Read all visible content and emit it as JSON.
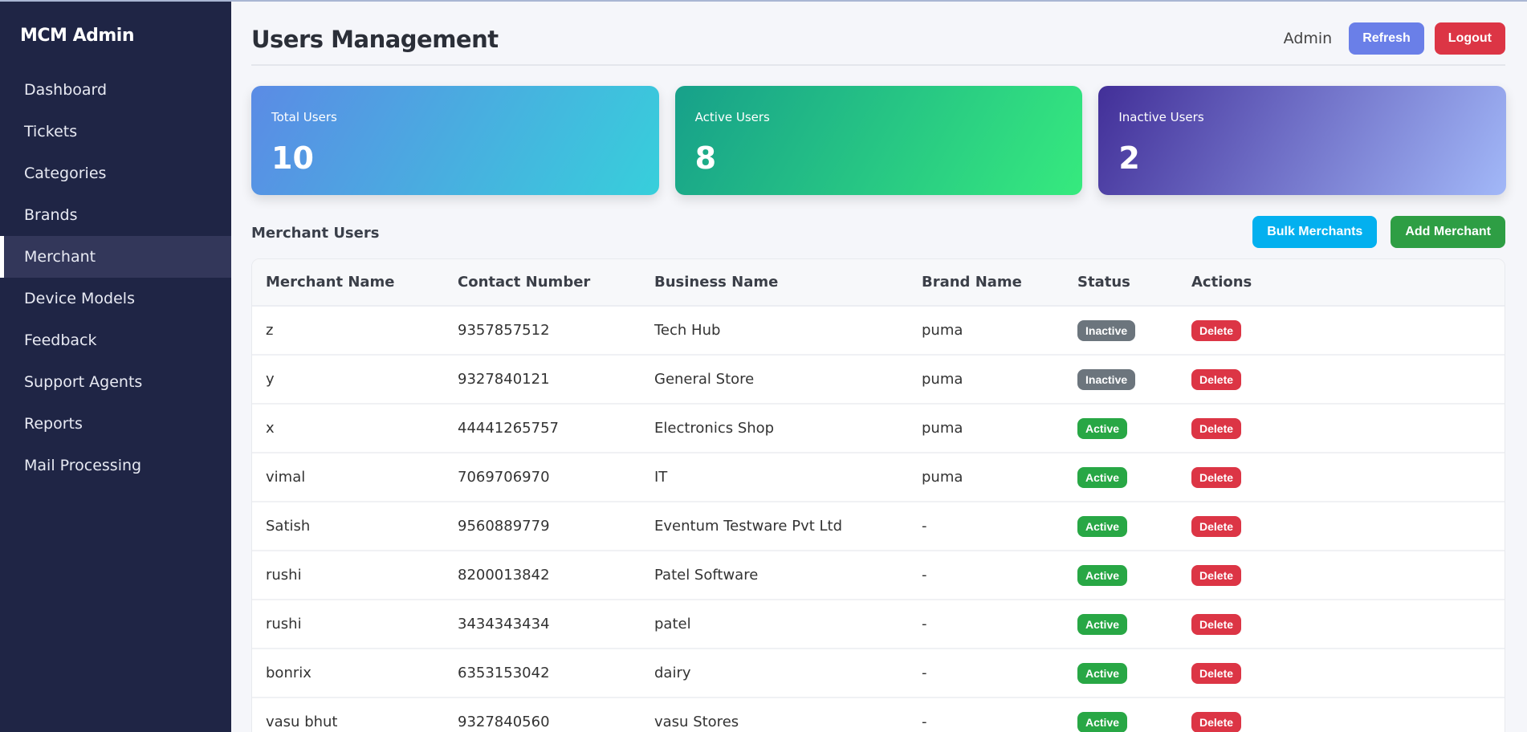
{
  "sidebar": {
    "brand": "MCM Admin",
    "items": [
      {
        "label": "Dashboard"
      },
      {
        "label": "Tickets"
      },
      {
        "label": "Categories"
      },
      {
        "label": "Brands"
      },
      {
        "label": "Merchant",
        "active": true
      },
      {
        "label": "Device Models"
      },
      {
        "label": "Feedback"
      },
      {
        "label": "Support Agents"
      },
      {
        "label": "Reports"
      },
      {
        "label": "Mail Processing"
      }
    ]
  },
  "header": {
    "title": "Users Management",
    "user": "Admin",
    "refresh": "Refresh",
    "logout": "Logout"
  },
  "colors": {
    "refresh": "#6a7fe8",
    "logout": "#dc3545",
    "bulk": "#03b0ef",
    "add": "#2e9e44",
    "active": "#28a745",
    "inactive": "#6c757d",
    "sidebar": "#1f2545"
  },
  "stats": [
    {
      "label": "Total Users",
      "value": "10"
    },
    {
      "label": "Active Users",
      "value": "8"
    },
    {
      "label": "Inactive Users",
      "value": "2"
    }
  ],
  "section": {
    "title": "Merchant Users",
    "bulk": "Bulk Merchants",
    "add": "Add Merchant"
  },
  "table": {
    "headers": [
      "Merchant Name",
      "Contact Number",
      "Business Name",
      "Brand Name",
      "Status",
      "Actions"
    ],
    "delete_label": "Delete",
    "rows": [
      {
        "name": "z",
        "contact": "9357857512",
        "business": "Tech Hub",
        "brand": "puma",
        "status": "Inactive"
      },
      {
        "name": "y",
        "contact": "9327840121",
        "business": "General Store",
        "brand": "puma",
        "status": "Inactive"
      },
      {
        "name": "x",
        "contact": "44441265757",
        "business": "Electronics Shop",
        "brand": "puma",
        "status": "Active"
      },
      {
        "name": "vimal",
        "contact": "7069706970",
        "business": "IT",
        "brand": "puma",
        "status": "Active"
      },
      {
        "name": "Satish",
        "contact": "9560889779",
        "business": "Eventum Testware Pvt Ltd",
        "brand": "-",
        "status": "Active"
      },
      {
        "name": "rushi",
        "contact": "8200013842",
        "business": "Patel Software",
        "brand": "-",
        "status": "Active"
      },
      {
        "name": "rushi",
        "contact": "3434343434",
        "business": "patel",
        "brand": "-",
        "status": "Active"
      },
      {
        "name": "bonrix",
        "contact": "6353153042",
        "business": "dairy",
        "brand": "-",
        "status": "Active"
      },
      {
        "name": "vasu bhut",
        "contact": "9327840560",
        "business": "vasu Stores",
        "brand": "-",
        "status": "Active"
      }
    ]
  }
}
